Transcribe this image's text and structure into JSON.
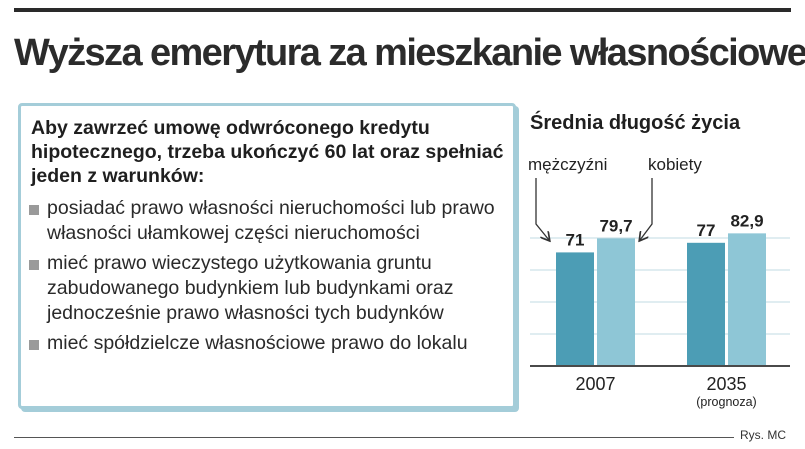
{
  "title": "Wyższa emerytura za mieszkanie własnościowe",
  "conditions_box": {
    "intro": "Aby zawrzeć umowę odwróconego kredytu hipotecznego, trzeba ukończyć 60 lat oraz spełniać jeden z warunków:",
    "items": [
      "posiadać prawo własności nieruchomości lub prawo własności ułamkowej części nieruchomości",
      "mieć prawo wieczystego użytkowania gruntu zabudowanego budynkiem lub budynkami oraz jednocześnie prawo własności tych budynków",
      "mieć spółdzielcze własnościowe prawo do lokalu"
    ]
  },
  "credit": "Rys. MC",
  "chart_data": {
    "type": "bar",
    "title": "Średnia długość życia",
    "categories": [
      "2007",
      "2035"
    ],
    "category_notes": [
      "",
      "(prognoza)"
    ],
    "series": [
      {
        "name": "mężczyźni",
        "values": [
          71,
          77
        ],
        "labels": [
          "71",
          "77"
        ],
        "color": "#4c9db5"
      },
      {
        "name": "kobiety",
        "values": [
          79.7,
          82.9
        ],
        "labels": [
          "79,7",
          "82,9"
        ],
        "color": "#8ec6d6"
      }
    ],
    "ylim": [
      0,
      100
    ],
    "grid": true,
    "gridline_values": [
      20,
      40,
      60,
      80
    ],
    "gridline_color": "#c2dbe3",
    "legend": "callout labels with arrows above the 2007 bars"
  }
}
